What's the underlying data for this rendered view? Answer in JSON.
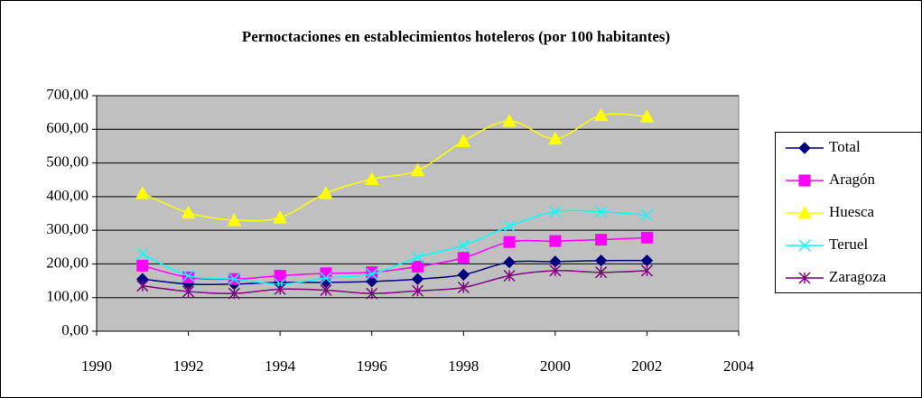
{
  "chart_data": {
    "type": "line",
    "title": "Pernoctaciones en establecimientos hoteleros (por 100 habitantes)",
    "x": [
      1991,
      1992,
      1993,
      1994,
      1995,
      1996,
      1997,
      1998,
      1999,
      2000,
      2001,
      2002
    ],
    "xlim": [
      1990,
      2004
    ],
    "xticks": [
      1990,
      1992,
      1994,
      1996,
      1998,
      2000,
      2002,
      2004
    ],
    "ylim": [
      0,
      700
    ],
    "yticks": [
      {
        "value": 0,
        "label": "0,00"
      },
      {
        "value": 100,
        "label": "100,00"
      },
      {
        "value": 200,
        "label": "200,00"
      },
      {
        "value": 300,
        "label": "300,00"
      },
      {
        "value": 400,
        "label": "400,00"
      },
      {
        "value": 500,
        "label": "500,00"
      },
      {
        "value": 600,
        "label": "600,00"
      },
      {
        "value": 700,
        "label": "700,00"
      }
    ],
    "grid": true,
    "legend": "right",
    "series": [
      {
        "name": "Total",
        "color": "#000080",
        "marker": "diamond",
        "values": [
          155,
          140,
          140,
          145,
          145,
          148,
          155,
          168,
          205,
          207,
          210,
          210
        ]
      },
      {
        "name": "Aragón",
        "color": "#ff00ff",
        "marker": "square",
        "values": [
          195,
          160,
          155,
          165,
          172,
          175,
          192,
          218,
          265,
          268,
          272,
          278
        ]
      },
      {
        "name": "Huesca",
        "color": "#ffff00",
        "marker": "triangle",
        "values": [
          410,
          352,
          330,
          338,
          410,
          452,
          478,
          565,
          625,
          572,
          642,
          638
        ]
      },
      {
        "name": "Teruel",
        "color": "#00ffff",
        "marker": "x",
        "values": [
          230,
          165,
          155,
          140,
          158,
          170,
          220,
          255,
          312,
          355,
          355,
          345
        ]
      },
      {
        "name": "Zaragoza",
        "color": "#800080",
        "marker": "star",
        "values": [
          135,
          118,
          112,
          125,
          122,
          112,
          120,
          130,
          165,
          180,
          175,
          180
        ]
      }
    ]
  }
}
